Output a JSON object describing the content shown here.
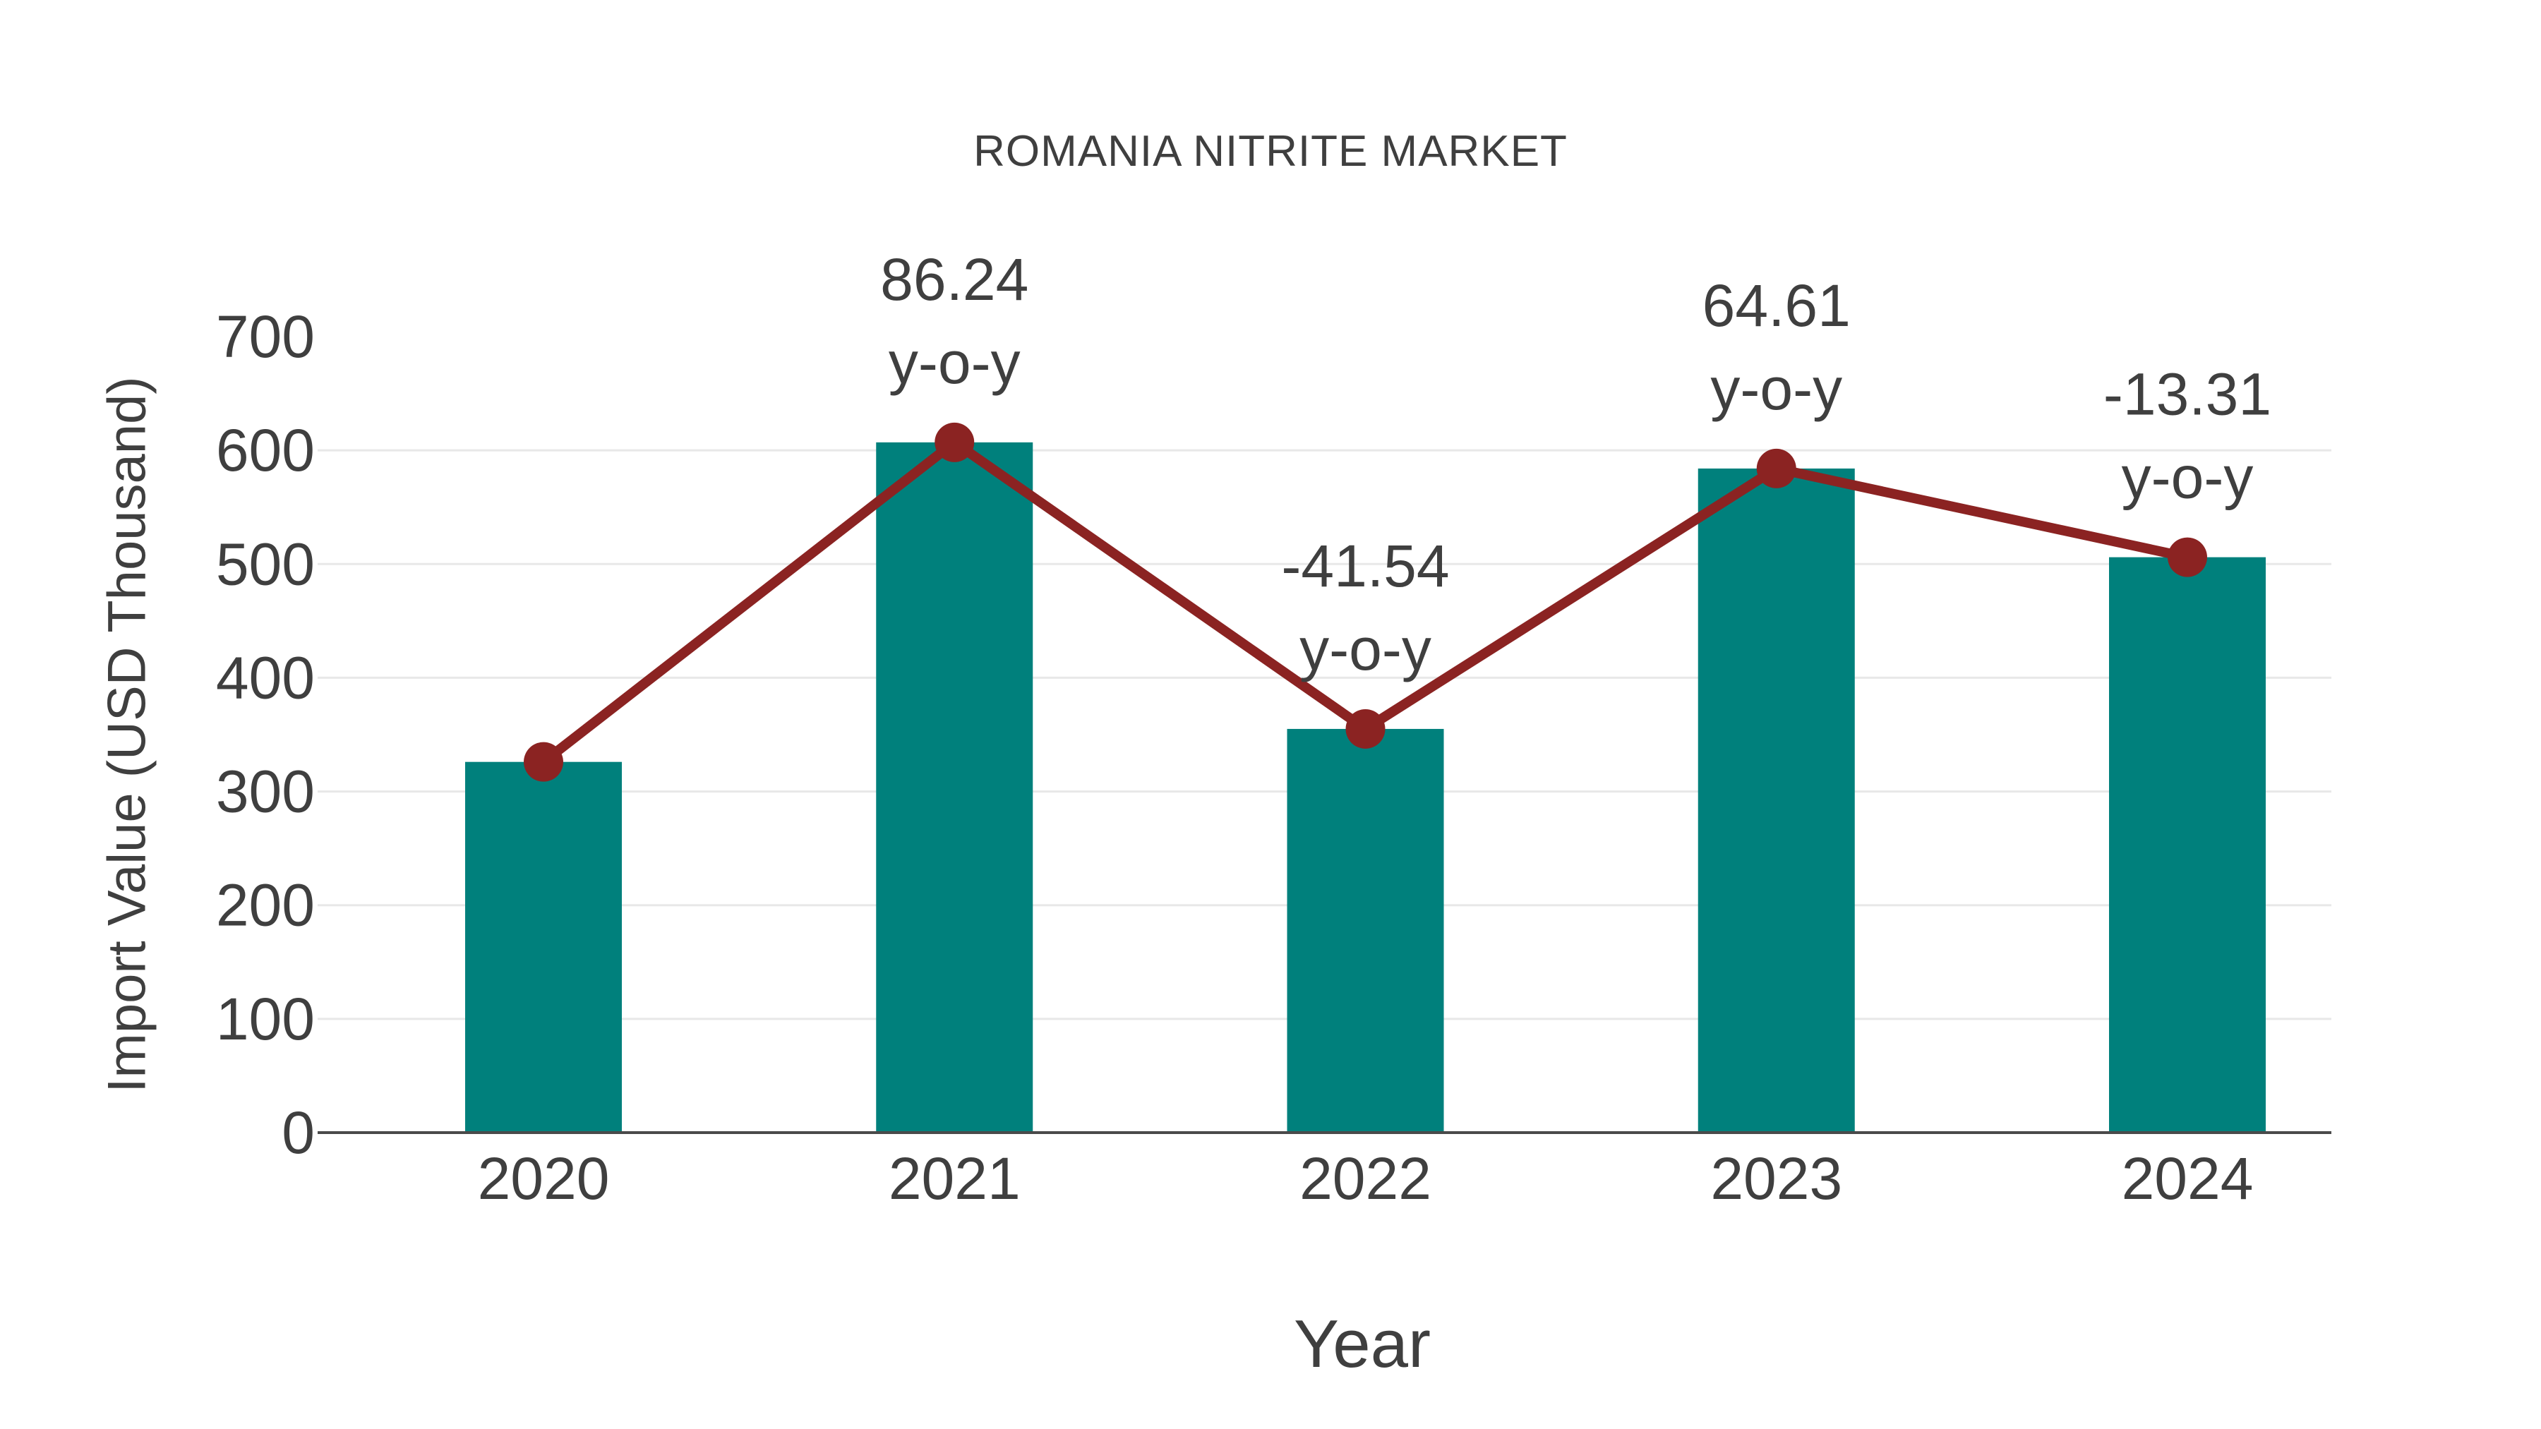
{
  "chart_data": {
    "type": "bar",
    "title": "ROMANIA NITRITE MARKET",
    "xlabel": "Year",
    "ylabel": "Import Value (USD Thousand)",
    "categories": [
      "2020",
      "2021",
      "2022",
      "2023",
      "2024"
    ],
    "series": [
      {
        "name": "Import Value",
        "type": "bar",
        "values": [
          326,
          607,
          355,
          584,
          506
        ],
        "color": "#00807c"
      },
      {
        "name": "y-o-y trend",
        "type": "line",
        "values": [
          326,
          607,
          355,
          584,
          506
        ],
        "color": "#8b2322"
      }
    ],
    "annotations": [
      {
        "category": "2021",
        "lines": [
          "86.24",
          "y-o-y"
        ]
      },
      {
        "category": "2022",
        "lines": [
          "-41.54",
          "y-o-y"
        ]
      },
      {
        "category": "2023",
        "lines": [
          "64.61",
          "y-o-y"
        ]
      },
      {
        "category": "2024",
        "lines": [
          "-13.31",
          "y-o-y"
        ]
      }
    ],
    "ylim": [
      0,
      700
    ],
    "yticks": [
      0,
      100,
      200,
      300,
      400,
      500,
      600,
      700
    ],
    "gridlines_at": [
      100,
      200,
      300,
      400,
      500,
      600
    ],
    "legend_position": "none",
    "colors": {
      "bar": "#00807c",
      "line": "#8b2322",
      "text": "#3f3f3f",
      "grid": "#e8e8e8",
      "axis": "#4a4a4a",
      "background": "#ffffff"
    }
  }
}
